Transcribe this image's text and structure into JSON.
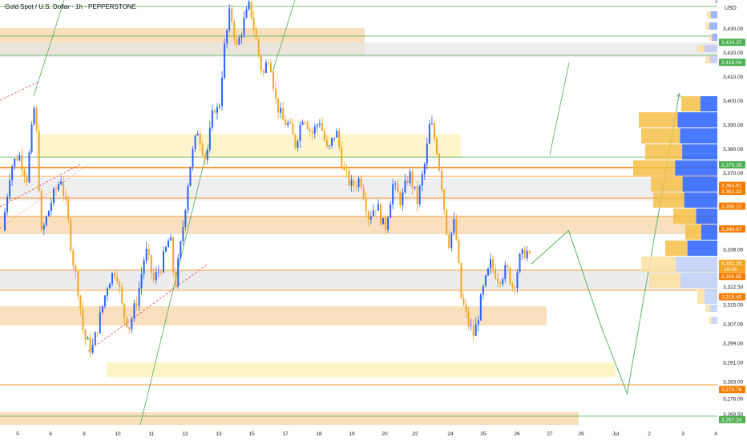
{
  "chart_data": {
    "type": "candlestick",
    "title": "Gold Spot / U.S. Dollar · 1h · PEPPERSTONE",
    "currency": "USD",
    "ylim": [
      3265,
      3441
    ],
    "y_ticks": [
      3430.0,
      3420.0,
      3410.0,
      3400.0,
      3390.0,
      3380.0,
      3370.0,
      3338.0,
      3322.5,
      3315.0,
      3307.0,
      3299.0,
      3291.0,
      3283.0,
      3276.0,
      3269.5
    ],
    "y_tick_labels": [
      "3,430.00",
      "3,420.00",
      "3,410.00",
      "3,400.00",
      "3,390.00",
      "3,380.00",
      "3,370.00",
      "3,338.00",
      "3,322.50",
      "3,315.00",
      "3,307.00",
      "3,299.00",
      "3,291.00",
      "3,283.00",
      "3,276.00",
      "3,269.50"
    ],
    "x_labels": [
      "5",
      "6",
      "8",
      "10",
      "11",
      "12",
      "13",
      "15",
      "17",
      "18",
      "19",
      "20",
      "22",
      "24",
      "25",
      "26",
      "27",
      "29",
      "Jul",
      "2",
      "3",
      "4"
    ],
    "price_tags": [
      {
        "label": "3,424.37",
        "value": 3424.37,
        "color": "#4caf50"
      },
      {
        "label": "3,416.04",
        "value": 3416.04,
        "color": "#4caf50"
      },
      {
        "label": "3,373.35",
        "value": 3373.35,
        "color": "#4caf50"
      },
      {
        "label": "3,364.81",
        "value": 3364.81,
        "color": "#f57c00"
      },
      {
        "label": "3,362.32",
        "value": 3362.32,
        "color": "#f57c00"
      },
      {
        "label": "3,356.12",
        "value": 3356.12,
        "color": "#f57c00"
      },
      {
        "label": "3,346.67",
        "value": 3346.67,
        "color": "#f57c00"
      },
      {
        "label": "3,332.35",
        "value": 3332.35,
        "color": "#f5a623",
        "sub": "18:46"
      },
      {
        "label": "3,326.85",
        "value": 3326.85,
        "color": "#f57c00"
      },
      {
        "label": "3,318.40",
        "value": 3318.4,
        "color": "#f57c00"
      },
      {
        "label": "3,279.76",
        "value": 3279.76,
        "color": "#f57c00"
      },
      {
        "label": "3,267.24",
        "value": 3267.24,
        "color": "#4caf50"
      }
    ],
    "close_path": [
      [
        0,
        3346
      ],
      [
        0.5,
        3372
      ],
      [
        1,
        3378
      ],
      [
        1.5,
        3368
      ],
      [
        2,
        3400
      ],
      [
        2.4,
        3344
      ],
      [
        3,
        3358
      ],
      [
        3.6,
        3368
      ],
      [
        4,
        3352
      ],
      [
        4.3,
        3335
      ],
      [
        4.7,
        3320
      ],
      [
        5,
        3302
      ],
      [
        5.5,
        3296
      ],
      [
        6,
        3310
      ],
      [
        6.5,
        3325
      ],
      [
        7,
        3330
      ],
      [
        7.4,
        3312
      ],
      [
        7.8,
        3306
      ],
      [
        8.3,
        3318
      ],
      [
        8.8,
        3338
      ],
      [
        9.3,
        3325
      ],
      [
        9.8,
        3332
      ],
      [
        10.3,
        3344
      ],
      [
        10.6,
        3322
      ],
      [
        11,
        3342
      ],
      [
        11.5,
        3372
      ],
      [
        12,
        3388
      ],
      [
        12.5,
        3375
      ],
      [
        13,
        3398
      ],
      [
        13.3,
        3395
      ],
      [
        13.6,
        3420
      ],
      [
        14,
        3438
      ],
      [
        14.4,
        3422
      ],
      [
        14.8,
        3432
      ],
      [
        15.2,
        3440
      ],
      [
        15.6,
        3425
      ],
      [
        16,
        3410
      ],
      [
        16.4,
        3420
      ],
      [
        16.8,
        3400
      ],
      [
        17.2,
        3392
      ],
      [
        17.6,
        3390
      ],
      [
        18,
        3382
      ],
      [
        18.5,
        3395
      ],
      [
        19,
        3386
      ],
      [
        19.5,
        3392
      ],
      [
        20,
        3378
      ],
      [
        20.5,
        3388
      ],
      [
        21,
        3370
      ],
      [
        21.5,
        3364
      ],
      [
        22,
        3368
      ],
      [
        22.5,
        3352
      ],
      [
        23,
        3357
      ],
      [
        23.5,
        3346
      ],
      [
        24,
        3365
      ],
      [
        24.5,
        3358
      ],
      [
        25,
        3370
      ],
      [
        25.5,
        3358
      ],
      [
        26,
        3375
      ],
      [
        26.3,
        3392
      ],
      [
        26.7,
        3380
      ],
      [
        27,
        3365
      ],
      [
        27.4,
        3340
      ],
      [
        27.8,
        3350
      ],
      [
        28.2,
        3318
      ],
      [
        28.6,
        3308
      ],
      [
        29,
        3302
      ],
      [
        29.5,
        3320
      ],
      [
        30,
        3332
      ],
      [
        30.5,
        3326
      ],
      [
        31,
        3330
      ],
      [
        31.4,
        3322
      ],
      [
        31.8,
        3334
      ],
      [
        32.2,
        3338
      ],
      [
        32.5,
        3332
      ]
    ],
    "projection": [
      [
        32.5,
        3332
      ],
      [
        34.8,
        3346
      ],
      [
        36.8,
        3306
      ],
      [
        38.4,
        3278
      ],
      [
        41.6,
        3403
      ]
    ]
  }
}
